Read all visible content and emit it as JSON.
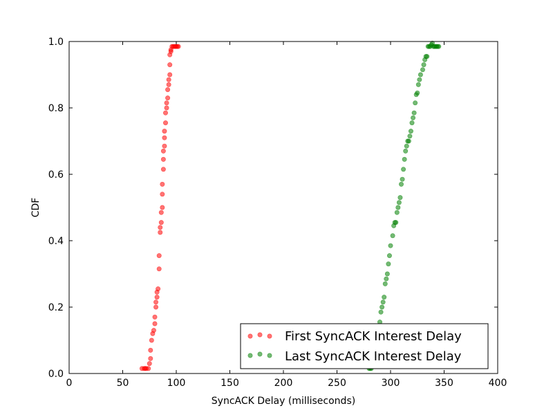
{
  "chart_data": {
    "type": "scatter",
    "title": "",
    "xlabel": "SyncACK Delay (milliseconds)",
    "ylabel": "CDF",
    "xlim": [
      0,
      400
    ],
    "ylim": [
      0.0,
      1.0
    ],
    "xticks": [
      "0",
      "50",
      "100",
      "150",
      "200",
      "250",
      "300",
      "350",
      "400"
    ],
    "yticks": [
      "0.0",
      "0.2",
      "0.4",
      "0.6",
      "0.8",
      "1.0"
    ],
    "grid": false,
    "legend_position": "lower-right",
    "series": [
      {
        "name": "First SyncACK Interest Delay",
        "color": "#ff0000",
        "x": [
          68,
          70,
          71,
          72,
          74,
          75,
          76,
          76,
          77,
          78,
          79,
          80,
          80,
          81,
          81,
          82,
          82,
          83,
          84,
          84,
          85,
          85,
          86,
          86,
          87,
          87,
          87,
          88,
          88,
          88,
          89,
          89,
          89,
          90,
          90,
          91,
          91,
          92,
          92,
          93,
          93,
          94,
          94,
          94,
          95,
          95,
          96,
          97,
          98,
          99,
          100,
          101,
          102
        ],
        "y": [
          0.015,
          0.015,
          0.015,
          0.015,
          0.015,
          0.03,
          0.045,
          0.07,
          0.1,
          0.12,
          0.13,
          0.15,
          0.17,
          0.2,
          0.215,
          0.23,
          0.245,
          0.255,
          0.315,
          0.355,
          0.425,
          0.44,
          0.455,
          0.485,
          0.5,
          0.54,
          0.57,
          0.615,
          0.645,
          0.67,
          0.685,
          0.71,
          0.73,
          0.755,
          0.785,
          0.8,
          0.815,
          0.83,
          0.855,
          0.87,
          0.885,
          0.9,
          0.93,
          0.96,
          0.97,
          0.975,
          0.985,
          0.985,
          0.985,
          0.985,
          0.985,
          0.985,
          0.985
        ]
      },
      {
        "name": "Last SyncACK Interest Delay",
        "color": "#008000",
        "x": [
          280,
          281,
          282,
          290,
          291,
          292,
          293,
          294,
          295,
          296,
          297,
          298,
          299,
          300,
          302,
          303,
          304,
          305,
          306,
          307,
          308,
          309,
          310,
          311,
          312,
          313,
          314,
          315,
          316,
          317,
          318,
          319,
          320,
          321,
          322,
          323,
          324,
          325,
          326,
          327,
          328,
          330,
          331,
          332,
          333,
          334,
          335,
          336,
          337,
          338,
          339,
          340,
          341,
          342,
          343,
          344,
          345
        ],
        "y": [
          0.015,
          0.015,
          0.015,
          0.155,
          0.185,
          0.2,
          0.215,
          0.23,
          0.27,
          0.285,
          0.3,
          0.33,
          0.355,
          0.385,
          0.415,
          0.445,
          0.455,
          0.455,
          0.485,
          0.5,
          0.515,
          0.53,
          0.57,
          0.585,
          0.615,
          0.645,
          0.67,
          0.685,
          0.7,
          0.7,
          0.715,
          0.73,
          0.755,
          0.77,
          0.785,
          0.815,
          0.84,
          0.845,
          0.87,
          0.885,
          0.9,
          0.915,
          0.93,
          0.945,
          0.955,
          0.955,
          0.985,
          0.985,
          0.985,
          0.99,
          0.995,
          0.985,
          0.985,
          0.985,
          0.985,
          0.985,
          0.985
        ]
      }
    ]
  }
}
